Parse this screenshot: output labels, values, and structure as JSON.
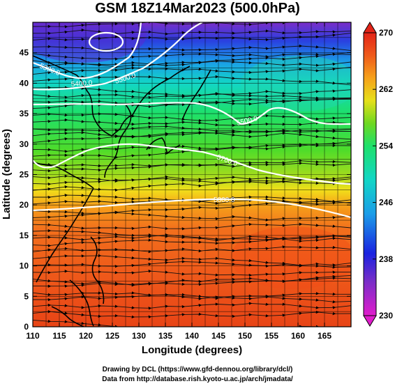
{
  "title": "GSM 18Z14Mar2023 (500.0hPa)",
  "xlabel": "Longitude (degrees)",
  "ylabel": "Latitude (degrees)",
  "x_ticks": [
    "110",
    "115",
    "120",
    "125",
    "130",
    "135",
    "140",
    "145",
    "150",
    "155",
    "160",
    "165"
  ],
  "y_ticks": [
    "0",
    "5",
    "10",
    "15",
    "20",
    "25",
    "30",
    "35",
    "40",
    "45"
  ],
  "colorbar": {
    "ticks": [
      "230",
      "238",
      "246",
      "254",
      "262",
      "270"
    ],
    "range": [
      230,
      270
    ]
  },
  "contour_labels": [
    "5300.0",
    "5400.0",
    "5500.0",
    "5500.0",
    "5700.0",
    "5800.0"
  ],
  "footer": {
    "line1": "Drawing by DCL (https://www.gfd-dennou.org/library/dcl/)",
    "line2": "Data from http://database.rish.kyoto-u.ac.jp/arch/jmadata/"
  },
  "chart_data": {
    "type": "heatmap",
    "title": "GSM 18Z14Mar2023 (500.0hPa)",
    "xlabel": "Longitude (degrees)",
    "ylabel": "Latitude (degrees)",
    "xlim": [
      110,
      170
    ],
    "ylim": [
      0,
      50
    ],
    "x_ticks": [
      110,
      115,
      120,
      125,
      130,
      135,
      140,
      145,
      150,
      155,
      160,
      165
    ],
    "y_ticks": [
      0,
      5,
      10,
      15,
      20,
      25,
      30,
      35,
      40,
      45
    ],
    "color_range": [
      230,
      270
    ],
    "colorbar_ticks": [
      230,
      238,
      246,
      254,
      262,
      270
    ],
    "contour_levels": [
      5300,
      5400,
      5500,
      5700,
      5800
    ],
    "grid": true,
    "overlay": "streamlines"
  }
}
